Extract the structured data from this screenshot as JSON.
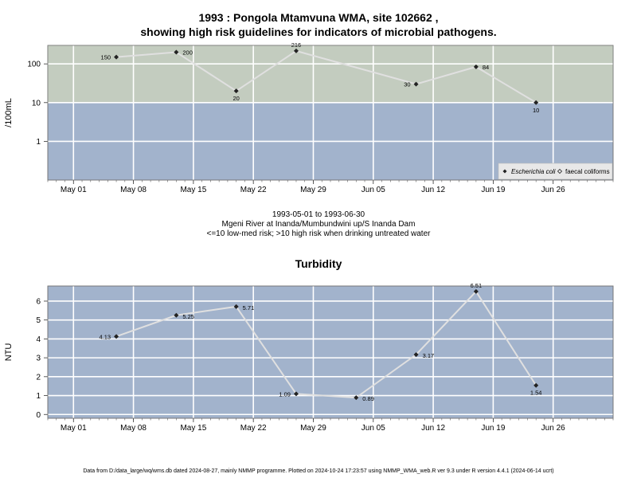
{
  "header": {
    "title_line1": "1993 : Pongola Mtamvuna WMA, site 102662 ,",
    "title_line2": "showing high risk guidelines for indicators of microbial pathogens."
  },
  "middle": {
    "line1": "1993-05-01 to 1993-06-30",
    "line2": "Mgeni River at Inanda/Mumbundwini up/S Inanda Dam",
    "line3": "<=10 low-med risk; >10 high risk when drinking untreated water"
  },
  "footer": {
    "text": "Data from D:/data_large/wq/wms.db dated 2024-08-27, mainly NMMP programme. Plotted on 2024-10-24 17:23:57 using NMMP_WMA_web.R ver 9.3 under R version 4.4.1 (2024-06-14 ucrt)"
  },
  "colors": {
    "high_risk_band": "#c3ccbf",
    "low_risk_band": "#a2b3cc",
    "line": "#e0e0e0",
    "point": "#222222",
    "grid": "#ffffff"
  },
  "chart_data": [
    {
      "type": "line",
      "ylabel": "/100mL",
      "y_scale": "log",
      "ylim": [
        0.1,
        300
      ],
      "xlim": [
        "1993-04-28",
        "1993-07-03"
      ],
      "x_tick_labels": [
        "May 01",
        "May 08",
        "May 15",
        "May 22",
        "May 29",
        "Jun 05",
        "Jun 12",
        "Jun 19",
        "Jun 26"
      ],
      "y_tick_labels": [
        "1",
        "10",
        "100"
      ],
      "threshold": 10,
      "series": [
        {
          "name": "Escherichia coli",
          "x": [
            "1993-05-06",
            "1993-05-13",
            "1993-05-20",
            "1993-05-27",
            "1993-06-10",
            "1993-06-17",
            "1993-06-24"
          ],
          "values": [
            150,
            200,
            20,
            216,
            30,
            84,
            10
          ],
          "labels": [
            "150",
            "200",
            "20",
            "216",
            "30",
            "84",
            "10"
          ]
        }
      ],
      "legend": {
        "position": "bottom-right",
        "entries": [
          "Escherichia coli",
          "faecal coliforms"
        ]
      }
    },
    {
      "type": "line",
      "title": "Turbidity",
      "ylabel": "NTU",
      "ylim": [
        -0.2,
        6.8
      ],
      "xlim": [
        "1993-04-28",
        "1993-07-03"
      ],
      "x_tick_labels": [
        "May 01",
        "May 08",
        "May 15",
        "May 22",
        "May 29",
        "Jun 05",
        "Jun 12",
        "Jun 19",
        "Jun 26"
      ],
      "y_tick_labels": [
        "0",
        "1",
        "2",
        "3",
        "4",
        "5",
        "6"
      ],
      "series": [
        {
          "x": [
            "1993-05-06",
            "1993-05-13",
            "1993-05-20",
            "1993-05-27",
            "1993-06-03",
            "1993-06-10",
            "1993-06-17",
            "1993-06-24"
          ],
          "values": [
            4.13,
            5.25,
            5.71,
            1.09,
            0.89,
            3.17,
            6.51,
            1.54
          ],
          "labels": [
            "4.13",
            "5.25",
            "5.71",
            "1.09",
            "0.89",
            "3.17",
            "6.51",
            "1.54"
          ]
        }
      ]
    }
  ]
}
